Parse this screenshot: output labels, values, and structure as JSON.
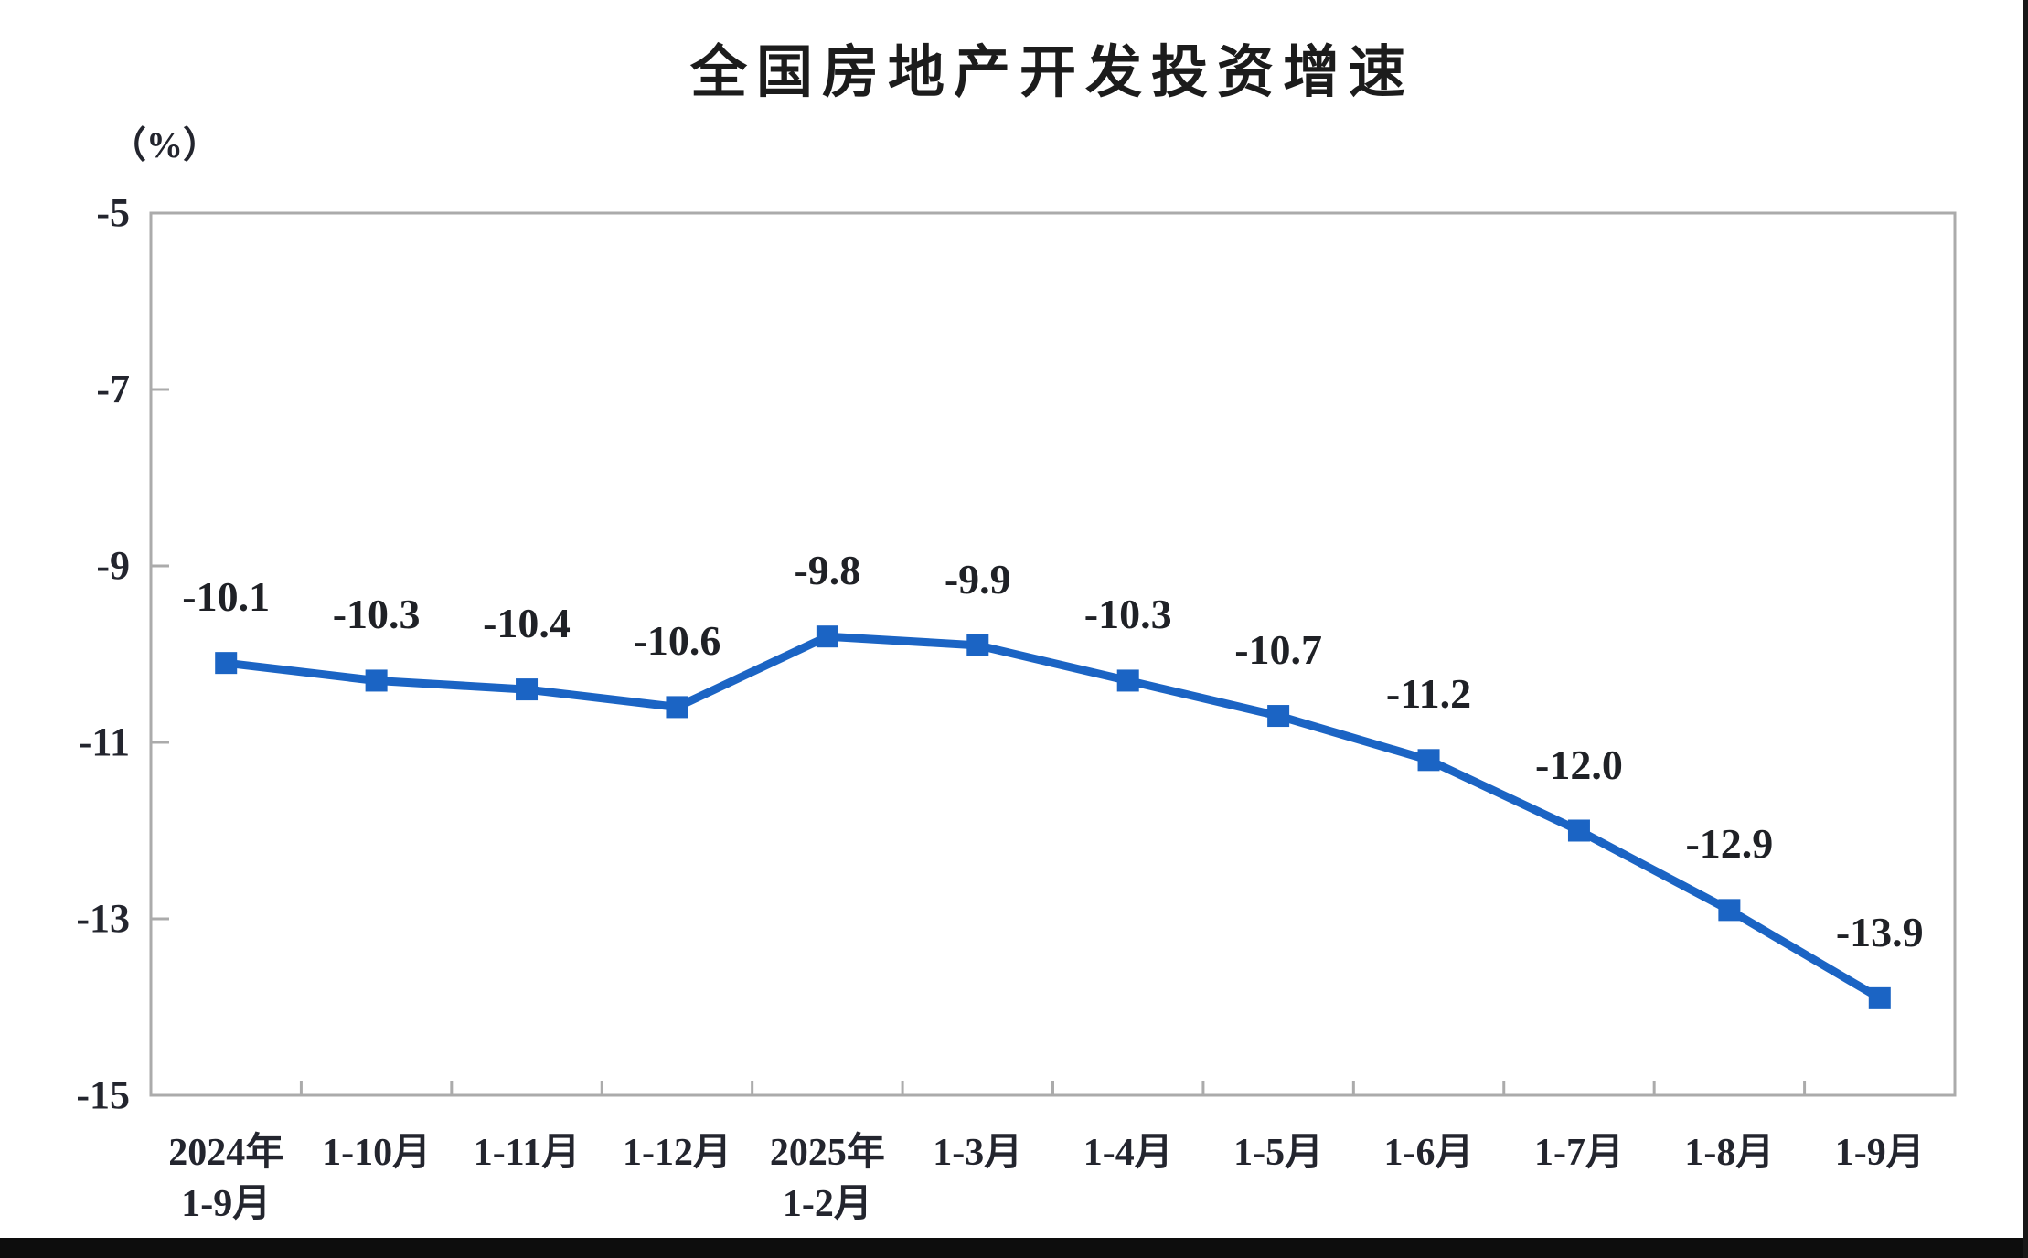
{
  "window": {
    "background": "#ffffff",
    "bottom_edge_color": "#0d0d0d",
    "right_edge_color": "#181818"
  },
  "chart_data": {
    "type": "line",
    "title": "全国房地产开发投资增速",
    "y_unit_label": "（%）",
    "categories": [
      "2024年\n1-9月",
      "1-10月",
      "1-11月",
      "1-12月",
      "2025年\n1-2月",
      "1-3月",
      "1-4月",
      "1-5月",
      "1-6月",
      "1-7月",
      "1-8月",
      "1-9月"
    ],
    "values": [
      -10.1,
      -10.3,
      -10.4,
      -10.6,
      -9.8,
      -9.9,
      -10.3,
      -10.7,
      -11.2,
      -12.0,
      -12.9,
      -13.9
    ],
    "data_labels": [
      "-10.1",
      "-10.3",
      "-10.4",
      "-10.6",
      "-9.8",
      "-9.9",
      "-10.3",
      "-10.7",
      "-11.2",
      "-12.0",
      "-12.9",
      "-13.9"
    ],
    "ylim": [
      -15,
      -5
    ],
    "yticks": [
      -5,
      -7,
      -9,
      -11,
      -13,
      -15
    ],
    "grid": false,
    "legend": "none",
    "series_color": "#1B64C4",
    "marker": "square",
    "label_color": "#1f2126",
    "axis_color": "#ABABAB"
  }
}
